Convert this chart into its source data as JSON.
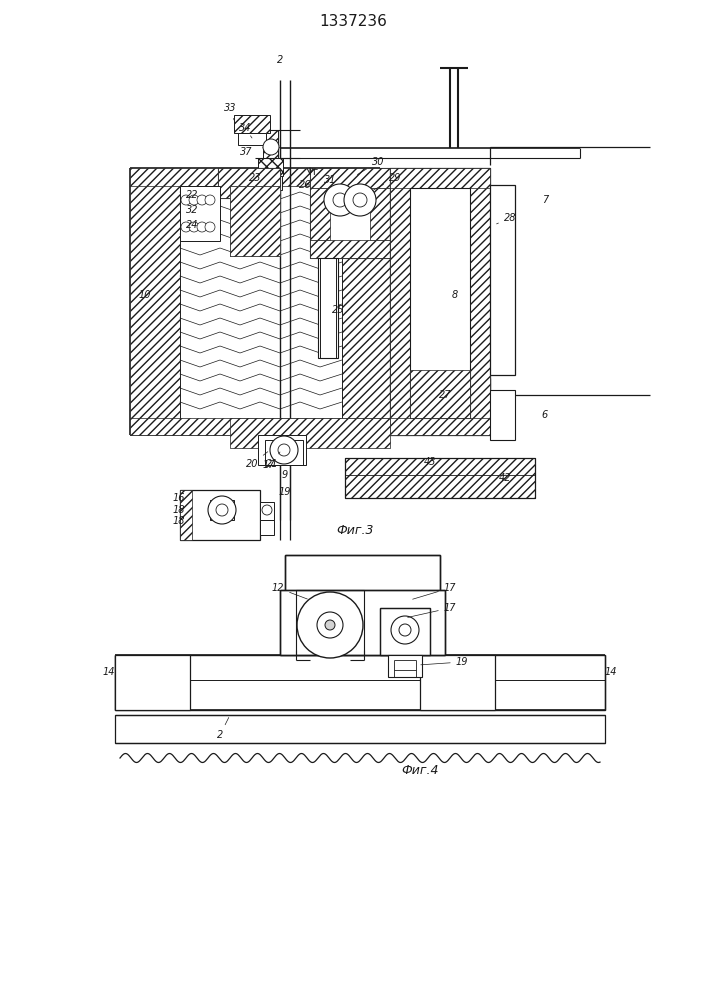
{
  "title": "1337236",
  "bg_color": "#ffffff",
  "line_color": "#1a1a1a",
  "fig3_label": "Фиг.3",
  "fig4_label": "Фиг.4"
}
